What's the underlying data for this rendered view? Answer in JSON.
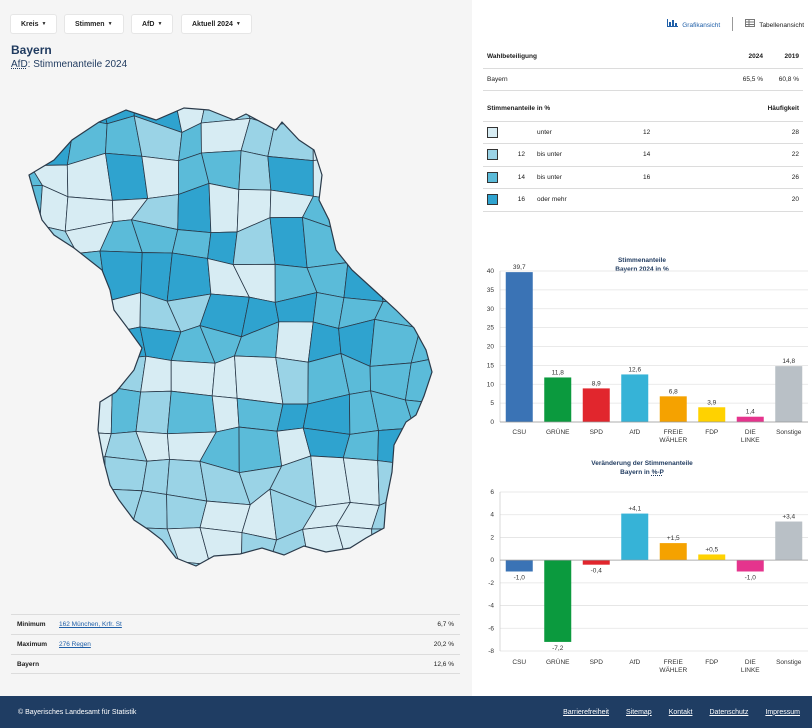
{
  "filters": [
    {
      "label": "Kreis"
    },
    {
      "label": "Stimmen"
    },
    {
      "label": "AfD"
    },
    {
      "label": "Aktuell 2024"
    }
  ],
  "region": "Bayern",
  "subtitle_party": "AfD",
  "subtitle_rest": ": Stimmenanteile 2024",
  "stats": [
    {
      "label": "Minimum",
      "link": "162 München, Krfr. St",
      "value": "6,7 %"
    },
    {
      "label": "Maximum",
      "link": "276 Regen",
      "value": "20,2 %"
    },
    {
      "label": "Bayern",
      "link": "",
      "value": "12,6 %"
    }
  ],
  "views": {
    "chart": "Grafikansicht",
    "table": "Tabellenansicht"
  },
  "turnout": {
    "header": [
      "Wahlbeteiligung",
      "2024",
      "2019"
    ],
    "rows": [
      [
        "Bayern",
        "65,5 %",
        "60,8 %"
      ]
    ]
  },
  "share_table": {
    "header_left": "Stimmenanteile in %",
    "header_right": "Häufigkeit",
    "rows": [
      {
        "color": "#d7ecf3",
        "low": "",
        "mid": "unter",
        "high": "12",
        "freq": "28"
      },
      {
        "color": "#9ad3e6",
        "low": "12",
        "mid": "bis unter",
        "high": "14",
        "freq": "22"
      },
      {
        "color": "#5bbbd9",
        "low": "14",
        "mid": "bis unter",
        "high": "16",
        "freq": "26"
      },
      {
        "color": "#2fa3cf",
        "low": "16",
        "mid": "oder mehr",
        "high": "",
        "freq": "20"
      }
    ]
  },
  "chart_data": [
    {
      "type": "bar",
      "title_line1": "Stimmenanteile",
      "title_line2": "Bayern 2024 in %",
      "categories": [
        "CSU",
        "GRÜNE",
        "SPD",
        "AfD",
        "FREIE WÄHLER",
        "FDP",
        "DIE LINKE",
        "Sonstige"
      ],
      "category_lines": [
        [
          "CSU"
        ],
        [
          "GRÜNE"
        ],
        [
          "SPD"
        ],
        [
          "AfD"
        ],
        [
          "FREIE",
          "WÄHLER"
        ],
        [
          "FDP"
        ],
        [
          "DIE",
          "LINKE"
        ],
        [
          "Sonstige"
        ]
      ],
      "values": [
        39.7,
        11.8,
        8.9,
        12.6,
        6.8,
        3.9,
        1.4,
        14.8
      ],
      "value_labels": [
        "39,7",
        "11,8",
        "8,9",
        "12,6",
        "6,8",
        "3,9",
        "1,4",
        "14,8"
      ],
      "colors": [
        "#3a73b5",
        "#0b9a3e",
        "#e1262d",
        "#36b3d7",
        "#f5a200",
        "#ffd200",
        "#e5348d",
        "#b9c0c6"
      ],
      "yticks": [
        0,
        5,
        10,
        15,
        20,
        25,
        30,
        35,
        40
      ],
      "ylim": [
        0,
        40
      ]
    },
    {
      "type": "bar",
      "title_line1": "Veränderung der Stimmenanteile",
      "title_line2_pre": "Bayern in ",
      "title_line2_unit": "%-P",
      "categories": [
        "CSU",
        "GRÜNE",
        "SPD",
        "AfD",
        "FREIE WÄHLER",
        "FDP",
        "DIE LINKE",
        "Sonstige"
      ],
      "category_lines": [
        [
          "CSU"
        ],
        [
          "GRÜNE"
        ],
        [
          "SPD"
        ],
        [
          "AfD"
        ],
        [
          "FREIE",
          "WÄHLER"
        ],
        [
          "FDP"
        ],
        [
          "DIE",
          "LINKE"
        ],
        [
          "Sonstige"
        ]
      ],
      "values": [
        -1.0,
        -7.2,
        -0.4,
        4.1,
        1.5,
        0.5,
        -1.0,
        3.4
      ],
      "value_labels": [
        "-1,0",
        "-7,2",
        "-0,4",
        "+4,1",
        "+1,5",
        "+0,5",
        "-1,0",
        "+3,4"
      ],
      "colors": [
        "#3a73b5",
        "#0b9a3e",
        "#e1262d",
        "#36b3d7",
        "#f5a200",
        "#ffd200",
        "#e5348d",
        "#b9c0c6"
      ],
      "yticks": [
        6,
        4,
        2,
        0,
        -2,
        -4,
        -6,
        -8
      ],
      "ylim": [
        -8,
        6
      ]
    }
  ],
  "footer": {
    "copyright": "© Bayerisches Landesamt für Statistik",
    "links": [
      "Barrierefreiheit",
      "Sitemap",
      "Kontakt",
      "Datenschutz",
      "Impressum"
    ]
  },
  "map_colors": [
    "#d7ecf3",
    "#9ad3e6",
    "#5bbbd9",
    "#2fa3cf"
  ]
}
